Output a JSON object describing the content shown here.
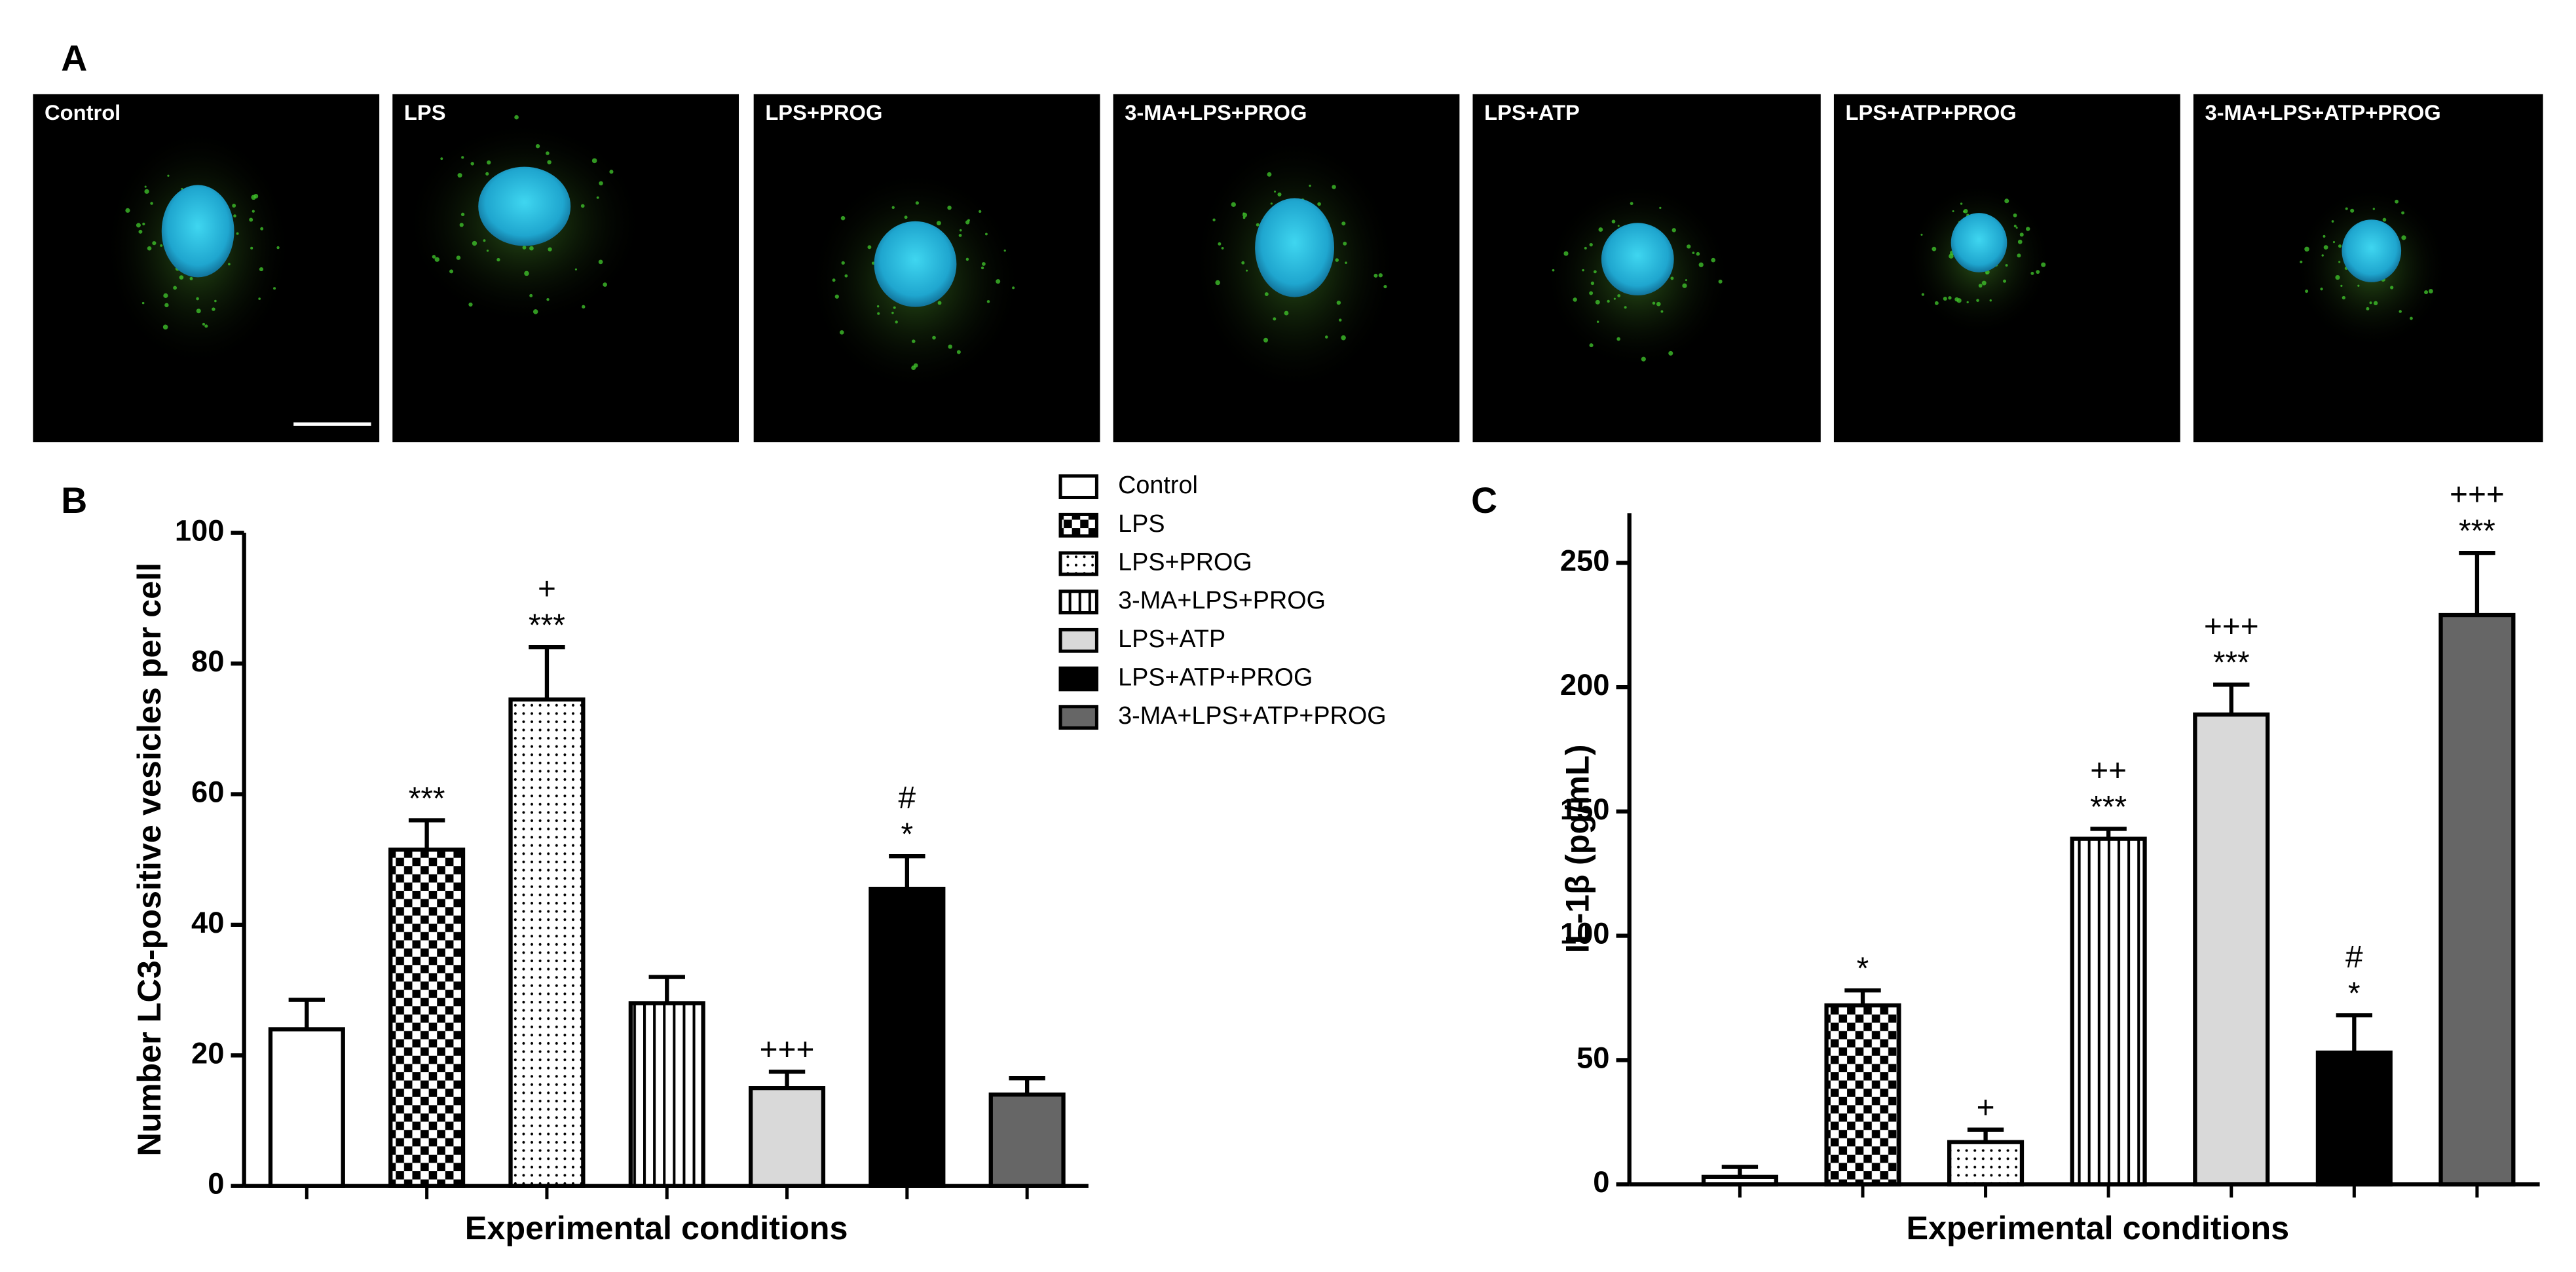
{
  "image_panel": {
    "panel_label": "A",
    "labels": [
      "Control",
      "LPS",
      "LPS+PROG",
      "3-MA+LPS+PROG",
      "LPS+ATP",
      "LPS+ATP+PROG",
      "3-MA+LPS+ATP+PROG"
    ]
  },
  "chart_data": [
    {
      "type": "bar",
      "panel_label": "B",
      "y_label": "Number LC3-positive vesicles per cell",
      "x_label": "Experimental conditions",
      "categories": [
        "Control",
        "LPS",
        "LPS+PROG",
        "3-MA+LPS+PROG",
        "LPS+ATP",
        "LPS+ATP+PROG",
        "3-MA+LPS+ATP+PROG"
      ],
      "values": [
        24,
        51.5,
        74.5,
        28,
        15,
        45.5,
        14
      ],
      "errors": [
        4.5,
        4.5,
        8,
        4,
        2.5,
        5,
        2.5
      ],
      "annotations": [
        [],
        [
          "***"
        ],
        [
          "+",
          "***"
        ],
        [],
        [
          "+++"
        ],
        [
          "#",
          "*"
        ],
        []
      ],
      "colors": [
        "#ffffff",
        "#000000",
        "#000000",
        "#000000",
        "#d9d9d9",
        "#000000",
        "#666666"
      ],
      "patterns": [
        "solid",
        "checker",
        "dots",
        "vstripes",
        "solid",
        "solid",
        "solid"
      ],
      "ylim": [
        0,
        100
      ],
      "yticks": [
        0,
        20,
        40,
        60,
        80,
        100
      ],
      "legend": true
    },
    {
      "type": "bar",
      "panel_label": "C",
      "y_label": "IL-1β  (pg/mL)",
      "x_label": "Experimental conditions",
      "categories": [
        "Control",
        "LPS",
        "LPS+PROG",
        "3-MA+LPS+PROG",
        "LPS+ATP",
        "LPS+ATP+PROG",
        "3-MA+LPS+ATP+PROG"
      ],
      "values": [
        3,
        72,
        17,
        139,
        189,
        53,
        229
      ],
      "errors": [
        4,
        6,
        5,
        4,
        12,
        15,
        25
      ],
      "annotations": [
        [],
        [
          "*"
        ],
        [
          "+"
        ],
        [
          "++",
          "***"
        ],
        [
          "+++",
          "***"
        ],
        [
          "#",
          "*"
        ],
        [
          "+++",
          "***"
        ]
      ],
      "colors": [
        "#ffffff",
        "#000000",
        "#000000",
        "#000000",
        "#d9d9d9",
        "#000000",
        "#666666"
      ],
      "patterns": [
        "solid",
        "checker",
        "dots",
        "vstripes",
        "solid",
        "solid",
        "solid"
      ],
      "ylim": [
        0,
        270
      ],
      "yticks": [
        0,
        50,
        100,
        150,
        200,
        250
      ],
      "legend": false
    }
  ]
}
